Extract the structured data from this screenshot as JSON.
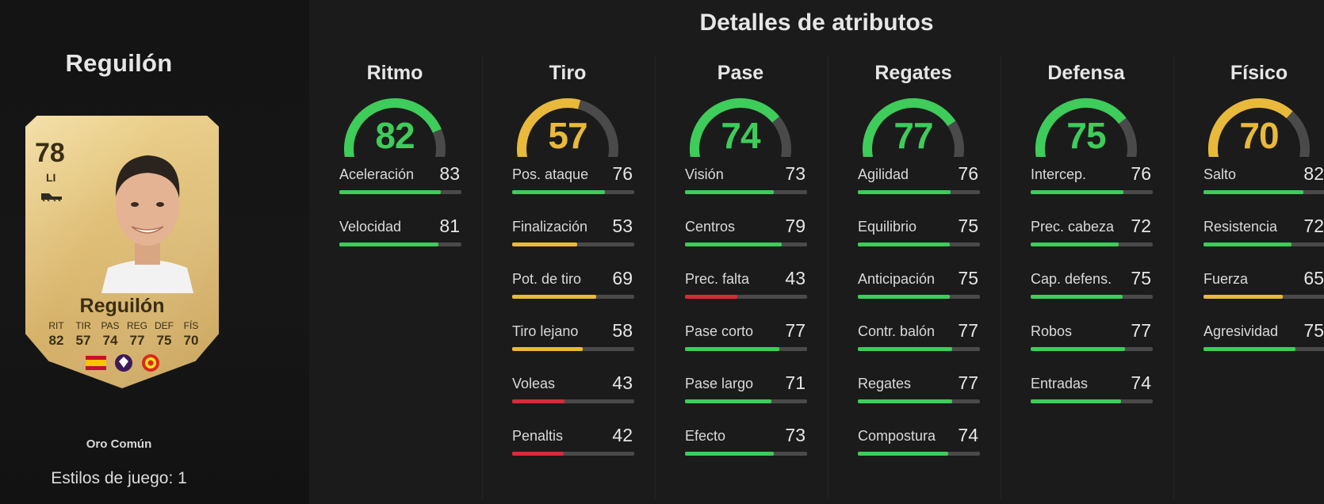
{
  "page_title": "Detalles de atributos",
  "colors": {
    "green": "#3ecc5a",
    "yellow": "#e8b93a",
    "red": "#d92a3a",
    "track": "#4a4a4a"
  },
  "player": {
    "name": "Reguilón",
    "card": {
      "rating": "78",
      "position": "LI",
      "name": "Reguilón",
      "stats": [
        {
          "label": "RIT",
          "value": "82"
        },
        {
          "label": "TIR",
          "value": "57"
        },
        {
          "label": "PAS",
          "value": "74"
        },
        {
          "label": "REG",
          "value": "77"
        },
        {
          "label": "DEF",
          "value": "75"
        },
        {
          "label": "FÍS",
          "value": "70"
        }
      ],
      "badges": [
        "spain-flag-icon",
        "premier-league-icon",
        "manchester-united-crest-icon"
      ]
    },
    "version": "Oro Común",
    "playstyles": "Estilos de juego: 1"
  },
  "categories": [
    {
      "title": "Ritmo",
      "value": 82,
      "color": "green",
      "attributes": [
        {
          "label": "Aceleración",
          "value": 83,
          "color": "green"
        },
        {
          "label": "Velocidad",
          "value": 81,
          "color": "green"
        }
      ]
    },
    {
      "title": "Tiro",
      "value": 57,
      "color": "yellow",
      "attributes": [
        {
          "label": "Pos. ataque",
          "value": 76,
          "color": "green"
        },
        {
          "label": "Finalización",
          "value": 53,
          "color": "yellow"
        },
        {
          "label": "Pot. de tiro",
          "value": 69,
          "color": "yellow"
        },
        {
          "label": "Tiro lejano",
          "value": 58,
          "color": "yellow"
        },
        {
          "label": "Voleas",
          "value": 43,
          "color": "red"
        },
        {
          "label": "Penaltis",
          "value": 42,
          "color": "red"
        }
      ]
    },
    {
      "title": "Pase",
      "value": 74,
      "color": "green",
      "attributes": [
        {
          "label": "Visión",
          "value": 73,
          "color": "green"
        },
        {
          "label": "Centros",
          "value": 79,
          "color": "green"
        },
        {
          "label": "Prec. falta",
          "value": 43,
          "color": "red"
        },
        {
          "label": "Pase corto",
          "value": 77,
          "color": "green"
        },
        {
          "label": "Pase largo",
          "value": 71,
          "color": "green"
        },
        {
          "label": "Efecto",
          "value": 73,
          "color": "green"
        }
      ]
    },
    {
      "title": "Regates",
      "value": 77,
      "color": "green",
      "attributes": [
        {
          "label": "Agilidad",
          "value": 76,
          "color": "green"
        },
        {
          "label": "Equilibrio",
          "value": 75,
          "color": "green"
        },
        {
          "label": "Anticipación",
          "value": 75,
          "color": "green"
        },
        {
          "label": "Contr. balón",
          "value": 77,
          "color": "green"
        },
        {
          "label": "Regates",
          "value": 77,
          "color": "green"
        },
        {
          "label": "Compostura",
          "value": 74,
          "color": "green"
        }
      ]
    },
    {
      "title": "Defensa",
      "value": 75,
      "color": "green",
      "attributes": [
        {
          "label": "Intercep.",
          "value": 76,
          "color": "green"
        },
        {
          "label": "Prec. cabeza",
          "value": 72,
          "color": "green"
        },
        {
          "label": "Cap. defens.",
          "value": 75,
          "color": "green"
        },
        {
          "label": "Robos",
          "value": 77,
          "color": "green"
        },
        {
          "label": "Entradas",
          "value": 74,
          "color": "green"
        }
      ]
    },
    {
      "title": "Físico",
      "value": 70,
      "color": "yellow",
      "attributes": [
        {
          "label": "Salto",
          "value": 82,
          "color": "green"
        },
        {
          "label": "Resistencia",
          "value": 72,
          "color": "green"
        },
        {
          "label": "Fuerza",
          "value": 65,
          "color": "yellow"
        },
        {
          "label": "Agresividad",
          "value": 75,
          "color": "green"
        }
      ]
    }
  ]
}
